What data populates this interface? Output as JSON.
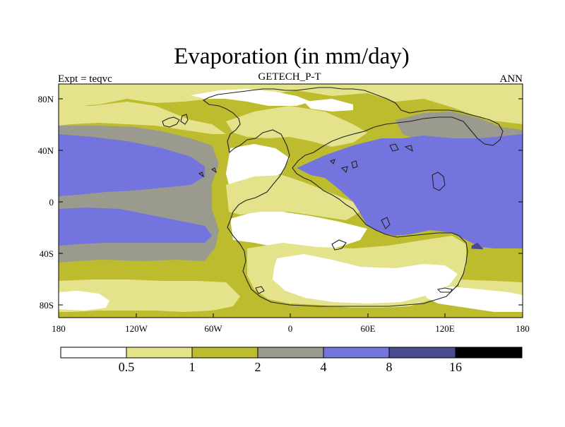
{
  "title": "Evaporation (in mm/day)",
  "subtitle": "GETECH_P-T",
  "left_label": "Expt = teqvc",
  "right_label": "ANN",
  "lon_ticks": [
    "180",
    "120W",
    "60W",
    "0",
    "60E",
    "120E",
    "180"
  ],
  "lat_ticks": [
    "80N",
    "40N",
    "0",
    "40S",
    "80S"
  ],
  "legend": {
    "labels": [
      "0.5",
      "1",
      "2",
      "4",
      "8",
      "16"
    ],
    "colors": [
      "#ffffff",
      "#e4e38c",
      "#bcbc2e",
      "#9a9a8e",
      "#7474de",
      "#4a4a8e",
      "#000000"
    ]
  },
  "colors": {
    "white": "#ffffff",
    "light_yellow": "#e4e38c",
    "olive": "#bcbc2e",
    "gray": "#9a9a8e",
    "blue": "#7474de",
    "dark_blue": "#4a4a8e",
    "black": "#000000"
  }
}
